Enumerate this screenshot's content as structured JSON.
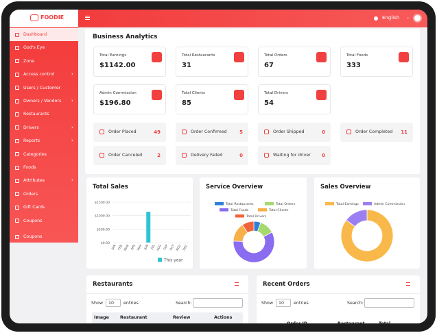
{
  "brand": "FOODIE",
  "header": {
    "language": "English"
  },
  "sidebar": [
    {
      "label": "Dashboard",
      "active": true
    },
    {
      "label": "God's Eye"
    },
    {
      "label": "Zone"
    },
    {
      "label": "Access control",
      "submenu": true
    },
    {
      "label": "Users / Customer"
    },
    {
      "label": "Owners / Vendors",
      "submenu": true
    },
    {
      "label": "Restaurants"
    },
    {
      "label": "Drivers",
      "submenu": true
    },
    {
      "label": "Reports",
      "submenu": true
    },
    {
      "label": "Categories"
    },
    {
      "label": "Foods"
    },
    {
      "label": "Attributes",
      "submenu": true
    },
    {
      "label": "Orders"
    },
    {
      "label": "Gift Cards"
    },
    {
      "label": "Coupons"
    },
    {
      "label": "Coupons"
    }
  ],
  "analytics": {
    "title": "Business Analytics",
    "cards": [
      {
        "label": "Total Earnings",
        "value": "$1142.00"
      },
      {
        "label": "Total Restaurants",
        "value": "31"
      },
      {
        "label": "Total Orders",
        "value": "67"
      },
      {
        "label": "Total Foods",
        "value": "333"
      },
      {
        "label": "Admin Commission",
        "value": "$196.80"
      },
      {
        "label": "Total Clients",
        "value": "85"
      },
      {
        "label": "Total Drivers",
        "value": "54"
      }
    ],
    "statuses": [
      {
        "label": "Order Placed",
        "value": "49"
      },
      {
        "label": "Order Confirmed",
        "value": "5"
      },
      {
        "label": "Order Shipped",
        "value": "0"
      },
      {
        "label": "Order Completed",
        "value": "11"
      },
      {
        "label": "Order Canceled",
        "value": "2"
      },
      {
        "label": "Delivery Failed",
        "value": "0"
      },
      {
        "label": "Waiting for driver",
        "value": "0"
      }
    ]
  },
  "charts": [
    {
      "type": "bar",
      "title": "Total Sales",
      "categories": [
        "JAN",
        "FEB",
        "MAR",
        "APR",
        "MAY",
        "JUN",
        "JUL",
        "AUG",
        "SEP",
        "OCT",
        "NOV",
        "DEC"
      ],
      "series": [
        {
          "name": "This year",
          "color": "#2ec4d6",
          "values": [
            0,
            0,
            0,
            0,
            0,
            1142,
            0,
            0,
            0,
            0,
            0,
            0
          ]
        }
      ],
      "ylim": [
        0,
        1500
      ],
      "yticks": [
        {
          "value": 0,
          "label": "$0.00"
        },
        {
          "value": 500,
          "label": "$500.00"
        },
        {
          "value": 1000,
          "label": "$1000.00"
        },
        {
          "value": 1500,
          "label": "$1500.00"
        }
      ],
      "grid": true
    },
    {
      "type": "donut",
      "title": "Service Overview",
      "categories": [
        "Total Restaurants",
        "Total Orders",
        "Total Foods",
        "Total Clients",
        "Total Drivers"
      ],
      "values": [
        31,
        67,
        333,
        85,
        54
      ],
      "colors": [
        "#2f7fd6",
        "#a5d86d",
        "#8a6cf0",
        "#f8b04a",
        "#f0643c"
      ]
    },
    {
      "type": "donut",
      "title": "Sales Overview",
      "categories": [
        "Total Earnings",
        "Admin Commission"
      ],
      "values": [
        1142,
        196.8
      ],
      "colors": [
        "#f9b94a",
        "#9b7ef2"
      ]
    }
  ],
  "tables": [
    {
      "title": "Restaurants",
      "show": "Show",
      "length": "10",
      "entries": "entries",
      "search": "Search:",
      "columns": [
        "Image",
        "Restaurant",
        "Review",
        "Actions"
      ]
    },
    {
      "title": "Recent Orders",
      "show": "Show",
      "length": "10",
      "entries": "entries",
      "search": "Search:",
      "columns": [
        "Order ID",
        "Restaurant",
        "Total Amount"
      ]
    }
  ]
}
